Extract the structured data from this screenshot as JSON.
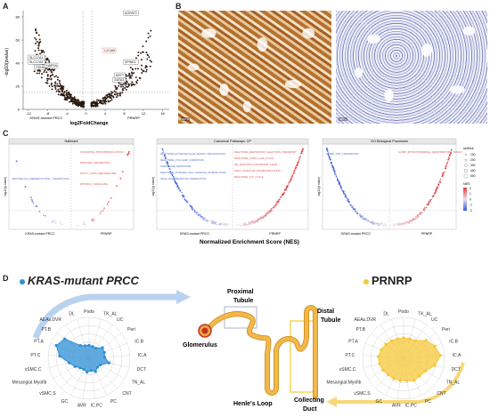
{
  "panel_letters": {
    "a": "A",
    "b": "B",
    "c": "C",
    "d": "D"
  },
  "volcano": {
    "ylabel": "-log10(pvalue)",
    "xlabel": "log2FoldChange",
    "left_group": "KRAS-mutant PRCC",
    "right_group": "PRNRP",
    "ytick_labels": [
      "80",
      "60",
      "40",
      "20",
      "0"
    ],
    "xtick_labels": [
      "-12",
      "-8",
      "-4",
      "0",
      "4",
      "8",
      "12",
      "16"
    ],
    "gene_labels": [
      {
        "text": "AGPAT2",
        "side": "up"
      },
      {
        "text": "SLC17A1",
        "side": "down"
      },
      {
        "text": "SLC17A3",
        "side": "down"
      },
      {
        "text": "CDH6",
        "side": "down"
      },
      {
        "text": "NAPSA",
        "side": "down"
      },
      {
        "text": "L1CAM",
        "side": "up"
      },
      {
        "text": "GATA3",
        "side": "up"
      },
      {
        "text": "KRT7",
        "side": "up"
      },
      {
        "text": "SPINK1",
        "side": "up"
      }
    ],
    "colors": {
      "points": "#2b1a10",
      "gene_box_down": "#3d67b5",
      "gene_box_up": "#e06a55"
    }
  },
  "ihc": {
    "left_scale": "200 µ",
    "right_scale": "200 µ"
  },
  "gsea": {
    "common_xlabel": "Normalized Enrichment Score (NES)",
    "left_group": "KRAS-mutant PRCC",
    "right_group": "PRNRP",
    "ylabel": "-log10(p value)",
    "colors": {
      "low": "#3a5bd9",
      "mid": "#e8e0ea",
      "high": "#e33b3b"
    },
    "panels": [
      {
        "title": "Hallmark",
        "labels_up": [
          "OXIDATIVE_PHOSPHORYLATION",
          "PROTEIN_SECRETION",
          "FATTY_ACID_METABOLISM",
          "MTORC1_SIGNALING"
        ],
        "labels_down": [
          "EPITHELIAL_MESENCHYMAL_TRANSITION"
        ]
      },
      {
        "title": "Canonical Pathways: CP",
        "labels_up": [
          "REACTOME_RESPIRATORY_ELECTRON_TRANSPORT",
          "REACTOME_CITRIC_ACID_CYCLE",
          "WP_ELECTRON_TRANSPORT_CHAIN",
          "KEGG_OXIDATIVE_PHOSPHORYLATION",
          "REACTOME_TCA_CYCLE"
        ],
        "labels_down": [
          "REACTOME_EXTRACELLULAR_MATRIX_ORGANIZATION",
          "REACTOME_COLLAGEN_FORMATION",
          "NABA_CORE_MATRISOME",
          "REACTOME_INTEGRIN_CELL_SURFACE_INTERACTIONS",
          "KEGG_ECM_RECEPTOR_INTERACTION"
        ]
      },
      {
        "title": "GO Biological Processes",
        "labels_up": [
          "GOBP_MITOCHONDRIAL_RESPIRATORY_CHAIN"
        ],
        "labels_down": [
          "GOBP_ION_TRANSPORT"
        ]
      }
    ],
    "legend": {
      "size_title": "setSize",
      "size_values": [
        "100",
        "200",
        "300",
        "400",
        "500"
      ],
      "nes_title": "NES",
      "nes_values": [
        "2",
        "1",
        "0",
        "-1",
        "-2"
      ]
    }
  },
  "radar": {
    "left_title": "KRAS-mutant PRCC",
    "right_title": "PRNRP",
    "axes": [
      "Podo",
      "TK_AL",
      "UC",
      "Peri",
      "IC.B",
      "IC.A",
      "DCT",
      "TN_AL",
      "CNT",
      "PC",
      "IC.PC",
      "AVR",
      "GC",
      "vSMC.S",
      "Mesangial.Myofib",
      "vSMC.C",
      "PT.C",
      "PT.A",
      "PT.B",
      "AEAs.DVR",
      "DL"
    ],
    "left_values": [
      0.32,
      0.3,
      0.3,
      0.42,
      0.4,
      0.38,
      0.5,
      0.32,
      0.3,
      0.36,
      0.3,
      0.34,
      0.3,
      0.32,
      0.4,
      0.5,
      0.72,
      0.86,
      0.76,
      0.38,
      0.32
    ],
    "right_values": [
      0.5,
      0.5,
      0.52,
      0.7,
      0.82,
      0.9,
      0.78,
      0.62,
      0.58,
      0.6,
      0.55,
      0.55,
      0.55,
      0.55,
      0.58,
      0.6,
      0.62,
      0.58,
      0.55,
      0.52,
      0.5
    ],
    "colors": {
      "left": "#2e8fd6",
      "right": "#f5c838",
      "arrow_left": "#b9d3ef",
      "arrow_right": "#f7d878"
    }
  },
  "nephron": {
    "labels": [
      "Proximal Tubule",
      "Glomerulus",
      "Distal Tubule",
      "Henle's Loop",
      "Collecting Duct"
    ],
    "colors": {
      "tubule": "#f3b74a",
      "tubule_edge": "#c98a1e",
      "glomerulus": "#c8321e",
      "box_left": "#aab6c8",
      "box_right": "#f3d24e"
    }
  }
}
